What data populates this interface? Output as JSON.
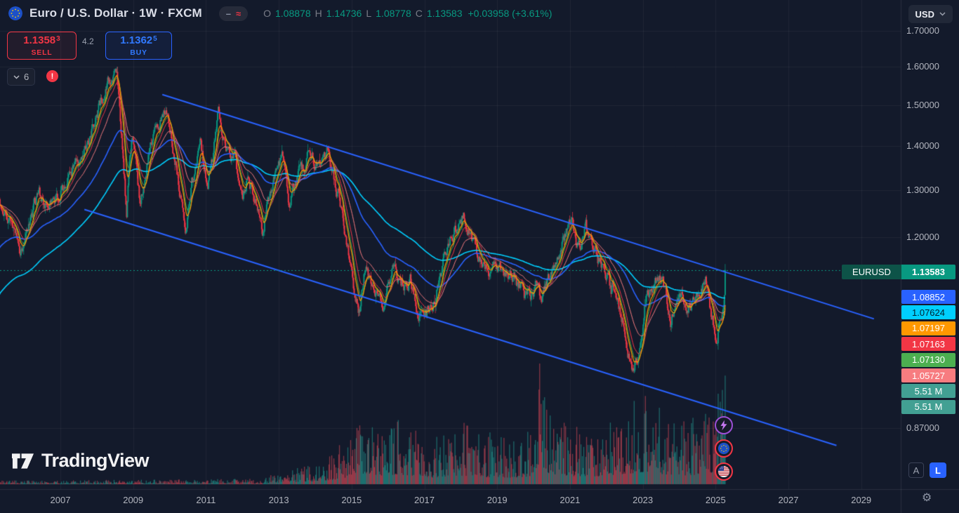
{
  "header": {
    "symbol_title": "Euro / U.S. Dollar · 1W · FXCM",
    "pill": {
      "dash": "–",
      "approx": "≈"
    },
    "ohlc": {
      "o_label": "O",
      "o": "1.08878",
      "h_label": "H",
      "h": "1.14736",
      "l_label": "L",
      "l": "1.08778",
      "c_label": "C",
      "c": "1.13583",
      "change": "+0.03958 (+3.61%)"
    },
    "currency_selector": "USD"
  },
  "trade_panel": {
    "sell": {
      "price": "1.1358",
      "sup": "3",
      "label": "SELL"
    },
    "spread": "4.2",
    "buy": {
      "price": "1.1362",
      "sup": "5",
      "label": "BUY"
    }
  },
  "indicators_collapsed": {
    "count": "6"
  },
  "icons": {
    "warning": "!",
    "settings": "⚙"
  },
  "price_label": {
    "symbol": "EURUSD",
    "value": "1.13583",
    "symbol_bg": "#0d5348",
    "value_bg": "#089981"
  },
  "watermark": {
    "brand": "TradingView"
  },
  "scale_buttons": {
    "auto": "A",
    "log": "L"
  },
  "events": [
    "lightning",
    "eu-flag",
    "us-flag"
  ],
  "chart_data": {
    "type": "candlestick",
    "symbol": "EURUSD",
    "interval": "1W",
    "exchange": "FXCM",
    "price_scale": "log",
    "current_price": 1.13583,
    "last_candle": {
      "open": 1.08878,
      "high": 1.14736,
      "low": 1.08778,
      "close": 1.13583
    },
    "y_ticks": [
      {
        "label": "1.70000",
        "price": 1.7
      },
      {
        "label": "1.60000",
        "price": 1.6
      },
      {
        "label": "1.50000",
        "price": 1.5
      },
      {
        "label": "1.40000",
        "price": 1.4
      },
      {
        "label": "1.30000",
        "price": 1.3
      },
      {
        "label": "1.20000",
        "price": 1.2
      },
      {
        "label": "0.87000",
        "price": 0.87
      }
    ],
    "x_ticks": [
      {
        "label": "2007",
        "year": 2007
      },
      {
        "label": "2009",
        "year": 2009
      },
      {
        "label": "2011",
        "year": 2011
      },
      {
        "label": "2013",
        "year": 2013
      },
      {
        "label": "2015",
        "year": 2015
      },
      {
        "label": "2017",
        "year": 2017
      },
      {
        "label": "2019",
        "year": 2019
      },
      {
        "label": "2021",
        "year": 2021
      },
      {
        "label": "2023",
        "year": 2023
      },
      {
        "label": "2025",
        "year": 2025
      },
      {
        "label": "2027",
        "year": 2027
      },
      {
        "label": "2029",
        "year": 2029
      }
    ],
    "right_labels": [
      {
        "text": "1.08852",
        "bg": "#2962ff",
        "fg": "#ffffff"
      },
      {
        "text": "1.07624",
        "bg": "#00cfff",
        "fg": "#00222e"
      },
      {
        "text": "1.07197",
        "bg": "#ff9800",
        "fg": "#ffffff"
      },
      {
        "text": "1.07163",
        "bg": "#f23645",
        "fg": "#ffffff"
      },
      {
        "text": "1.07130",
        "bg": "#4caf50",
        "fg": "#ffffff"
      },
      {
        "text": "1.05727",
        "bg": "#f77c80",
        "fg": "#ffffff"
      },
      {
        "text": "5.51 M",
        "bg": "#42a093",
        "fg": "#ffffff"
      },
      {
        "text": "5.51 M",
        "bg": "#42a093",
        "fg": "#ffffff"
      }
    ],
    "ema_overlays": [
      {
        "period": 200,
        "color": "#00cfff",
        "width": 1.6
      },
      {
        "period": 100,
        "color": "#2962ff",
        "width": 1.6
      },
      {
        "period": 40,
        "color": "#f77c80",
        "width": 1
      },
      {
        "period": 20,
        "color": "#f23645",
        "width": 1
      },
      {
        "period": 13,
        "color": "#4caf50",
        "width": 1
      },
      {
        "period": 10,
        "color": "#ff9800",
        "width": 1.2
      }
    ],
    "trendlines": [
      {
        "year1": 2009.8,
        "price1": 1.527,
        "year2": 2029.35,
        "price2": 1.046,
        "color": "#2962ff"
      },
      {
        "year1": 2007.66,
        "price1": 1.258,
        "year2": 2028.32,
        "price2": 0.845,
        "color": "#2962ff"
      }
    ],
    "price_path_anchors": [
      [
        2005.34,
        1.28
      ],
      [
        2005.9,
        1.17
      ],
      [
        2006.4,
        1.29
      ],
      [
        2006.75,
        1.255
      ],
      [
        2007.0,
        1.3
      ],
      [
        2007.6,
        1.37
      ],
      [
        2008.0,
        1.47
      ],
      [
        2008.3,
        1.555
      ],
      [
        2008.54,
        1.595
      ],
      [
        2008.82,
        1.25
      ],
      [
        2008.96,
        1.44
      ],
      [
        2009.2,
        1.26
      ],
      [
        2009.45,
        1.4
      ],
      [
        2009.9,
        1.505
      ],
      [
        2010.2,
        1.35
      ],
      [
        2010.45,
        1.195
      ],
      [
        2010.6,
        1.31
      ],
      [
        2010.85,
        1.415
      ],
      [
        2011.05,
        1.295
      ],
      [
        2011.35,
        1.487
      ],
      [
        2011.55,
        1.41
      ],
      [
        2011.8,
        1.37
      ],
      [
        2012.0,
        1.272
      ],
      [
        2012.17,
        1.345
      ],
      [
        2012.55,
        1.208
      ],
      [
        2012.75,
        1.3
      ],
      [
        2013.1,
        1.365
      ],
      [
        2013.27,
        1.277
      ],
      [
        2013.8,
        1.38
      ],
      [
        2014.0,
        1.36
      ],
      [
        2014.35,
        1.392
      ],
      [
        2014.75,
        1.25
      ],
      [
        2015.2,
        1.048
      ],
      [
        2015.38,
        1.143
      ],
      [
        2015.6,
        1.085
      ],
      [
        2015.85,
        1.058
      ],
      [
        2016.1,
        1.135
      ],
      [
        2016.35,
        1.11
      ],
      [
        2016.6,
        1.12
      ],
      [
        2016.95,
        1.038
      ],
      [
        2017.3,
        1.08
      ],
      [
        2017.65,
        1.19
      ],
      [
        2018.1,
        1.248
      ],
      [
        2018.45,
        1.155
      ],
      [
        2018.75,
        1.13
      ],
      [
        2019.0,
        1.145
      ],
      [
        2019.5,
        1.12
      ],
      [
        2019.75,
        1.09
      ],
      [
        2020.1,
        1.105
      ],
      [
        2020.22,
        1.07
      ],
      [
        2020.45,
        1.13
      ],
      [
        2020.95,
        1.225
      ],
      [
        2021.05,
        1.233
      ],
      [
        2021.25,
        1.172
      ],
      [
        2021.42,
        1.222
      ],
      [
        2021.75,
        1.16
      ],
      [
        2022.0,
        1.13
      ],
      [
        2022.12,
        1.09
      ],
      [
        2022.2,
        1.105
      ],
      [
        2022.45,
        1.04
      ],
      [
        2022.72,
        0.957
      ],
      [
        2022.9,
        1.0
      ],
      [
        2023.1,
        1.09
      ],
      [
        2023.52,
        1.125
      ],
      [
        2023.78,
        1.047
      ],
      [
        2023.95,
        1.095
      ],
      [
        2024.3,
        1.07
      ],
      [
        2024.55,
        1.085
      ],
      [
        2024.72,
        1.117
      ],
      [
        2024.9,
        1.05
      ],
      [
        2025.02,
        1.022
      ],
      [
        2025.12,
        1.04
      ],
      [
        2025.22,
        1.08
      ],
      [
        2025.28,
        1.095
      ]
    ],
    "volume_anchors": [
      [
        2005.34,
        0.02
      ],
      [
        2012.5,
        0.03
      ],
      [
        2013.2,
        0.08
      ],
      [
        2014.0,
        0.12
      ],
      [
        2014.6,
        0.2
      ],
      [
        2015.05,
        0.34
      ],
      [
        2015.35,
        0.44
      ],
      [
        2015.8,
        0.36
      ],
      [
        2016.3,
        0.4
      ],
      [
        2016.9,
        0.33
      ],
      [
        2017.3,
        0.26
      ],
      [
        2017.8,
        0.36
      ],
      [
        2018.3,
        0.33
      ],
      [
        2018.9,
        0.28
      ],
      [
        2019.4,
        0.27
      ],
      [
        2019.9,
        0.32
      ],
      [
        2020.17,
        0.55
      ],
      [
        2020.5,
        0.42
      ],
      [
        2021.0,
        0.33
      ],
      [
        2021.6,
        0.29
      ],
      [
        2022.2,
        0.36
      ],
      [
        2022.75,
        0.46
      ],
      [
        2023.05,
        0.5
      ],
      [
        2023.5,
        0.42
      ],
      [
        2023.9,
        0.38
      ],
      [
        2024.3,
        0.36
      ],
      [
        2024.7,
        0.44
      ],
      [
        2025.0,
        0.5
      ],
      [
        2025.28,
        0.55
      ]
    ],
    "colors": {
      "bg": "#131a2b",
      "grid": "rgba(255,255,255,0.05)",
      "up": "#089981",
      "down": "#f23645",
      "vol_up": "rgba(38,166,154,0.55)",
      "vol_down": "rgba(247,82,95,0.5)",
      "trendline": "#2962ff",
      "axis_text": "#b2b5be",
      "axis_border": "rgba(255,255,255,0.09)",
      "last_price_line": "#089981"
    }
  }
}
